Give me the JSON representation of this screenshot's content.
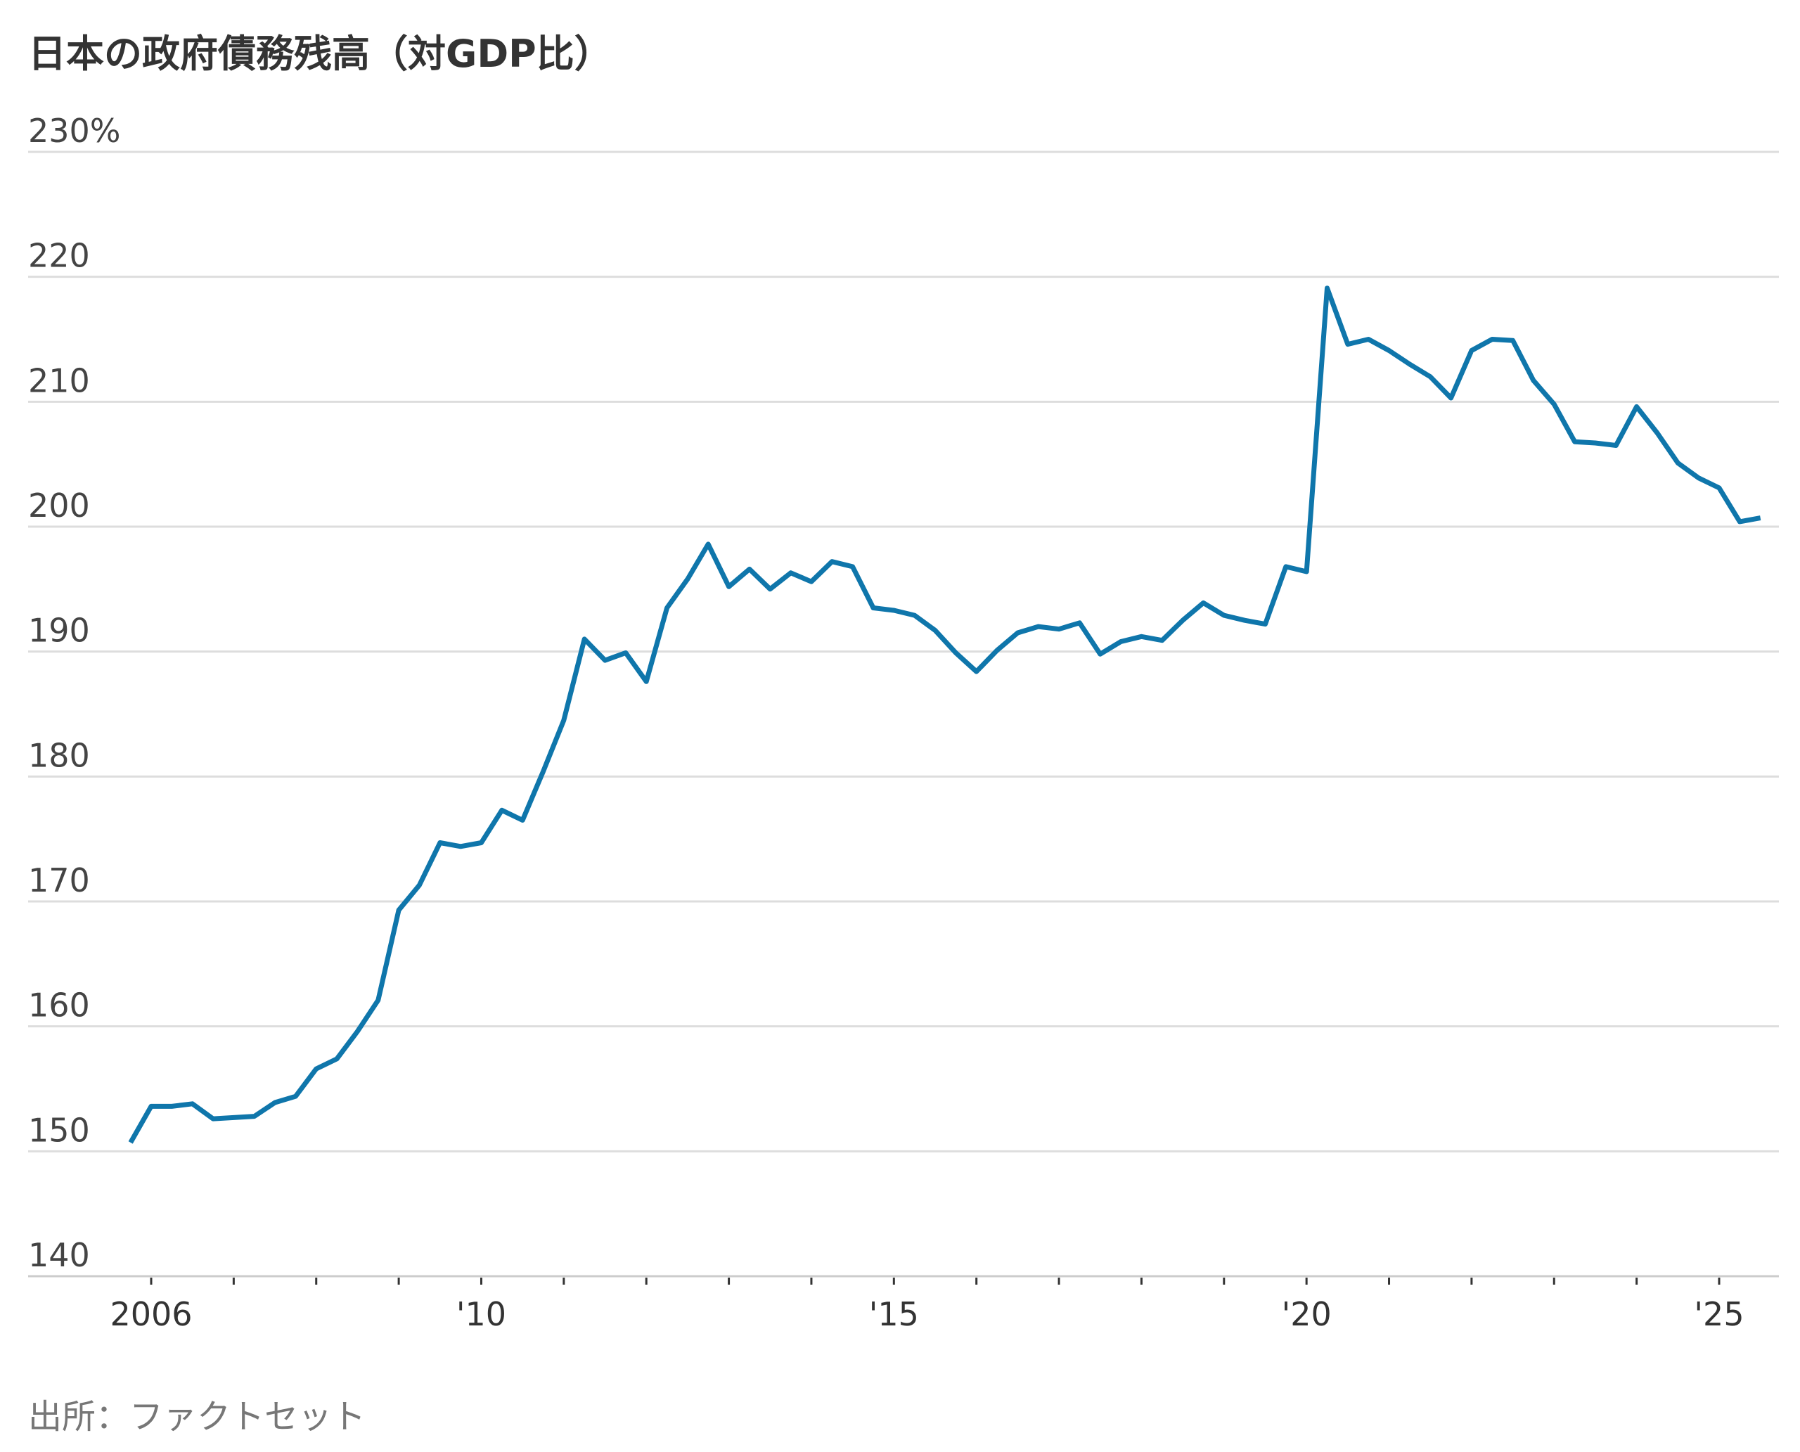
{
  "chart_data": {
    "type": "line",
    "title": "日本の政府債務残高（対GDP比）",
    "source": "出所：ファクトセット",
    "y_tick_labels": [
      "230%",
      "220",
      "210",
      "200",
      "190",
      "180",
      "170",
      "160",
      "150",
      "140"
    ],
    "y_ticks": [
      230,
      220,
      210,
      200,
      190,
      180,
      170,
      160,
      150,
      140
    ],
    "ylim": [
      140,
      230
    ],
    "x_tick_labels": [
      "2006",
      "'10",
      "'15",
      "'20",
      "'25"
    ],
    "x_tick_years": [
      2006,
      2010,
      2015,
      2020,
      2025
    ],
    "xlim": [
      2005.8,
      2025.7
    ],
    "minor_ticks": "every year",
    "grid": true,
    "line_color": "#0f76ab",
    "series": [
      {
        "x": [
          2005.75,
          2006.0,
          2006.25,
          2006.5,
          2006.75,
          2007.0,
          2007.25,
          2007.5,
          2007.75,
          2008.0,
          2008.25,
          2008.5,
          2008.75,
          2009.0,
          2009.25,
          2009.5,
          2009.75,
          2010.0,
          2010.25,
          2010.5,
          2010.75,
          2011.0,
          2011.25,
          2011.5,
          2011.75,
          2012.0,
          2012.25,
          2012.5,
          2012.75,
          2013.0,
          2013.25,
          2013.5,
          2013.75,
          2014.0,
          2014.25,
          2014.5,
          2014.75,
          2015.0,
          2015.25,
          2015.5,
          2015.75,
          2016.0,
          2016.25,
          2016.5,
          2016.75,
          2017.0,
          2017.25,
          2017.5,
          2017.75,
          2018.0,
          2018.25,
          2018.5,
          2018.75,
          2019.0,
          2019.25,
          2019.5,
          2019.75,
          2020.0,
          2020.25,
          2020.5,
          2020.75,
          2021.0,
          2021.25,
          2021.5,
          2021.75,
          2022.0,
          2022.25,
          2022.5,
          2022.75,
          2023.0,
          2023.25,
          2023.5,
          2023.75,
          2024.0,
          2024.25,
          2024.5,
          2024.75,
          2025.0,
          2025.25,
          2025.5
        ],
        "values": [
          150.7,
          153.6,
          153.6,
          153.8,
          152.6,
          152.7,
          152.8,
          153.9,
          154.4,
          156.6,
          157.4,
          159.6,
          162.1,
          169.3,
          171.3,
          174.7,
          174.4,
          174.7,
          177.3,
          176.5,
          180.4,
          184.5,
          191.0,
          189.3,
          189.9,
          187.6,
          193.5,
          195.8,
          198.6,
          195.2,
          196.6,
          195.0,
          196.3,
          195.6,
          197.2,
          196.8,
          193.5,
          193.3,
          192.9,
          191.7,
          189.9,
          188.4,
          190.1,
          191.5,
          192.0,
          191.8,
          192.3,
          189.8,
          190.8,
          191.2,
          190.9,
          192.5,
          193.9,
          192.9,
          192.5,
          192.2,
          196.8,
          196.4,
          219.1,
          214.6,
          215.0,
          214.1,
          213.0,
          212.0,
          210.3,
          214.1,
          215.0,
          214.9,
          211.7,
          209.8,
          206.8,
          206.7,
          206.5,
          209.6,
          207.5,
          205.1,
          203.9,
          203.1,
          200.4,
          200.7
        ]
      }
    ]
  }
}
